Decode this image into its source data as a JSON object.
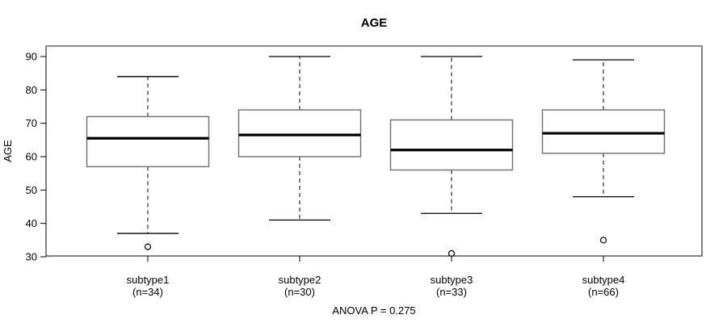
{
  "chart_data": {
    "type": "boxplot",
    "title": "AGE",
    "ylabel": "AGE",
    "footnote": "ANOVA P = 0.275",
    "ylim": [
      30,
      90
    ],
    "yticks": [
      "30",
      "40",
      "50",
      "60",
      "70",
      "80",
      "90"
    ],
    "grid": false,
    "legend": false,
    "groups": [
      {
        "label": "subtype1",
        "n_label": "(n=34)",
        "whisker_low": 37,
        "q1": 57,
        "median": 65.5,
        "q3": 72,
        "whisker_high": 84,
        "outliers": [
          33
        ]
      },
      {
        "label": "subtype2",
        "n_label": "(n=30)",
        "whisker_low": 41,
        "q1": 60,
        "median": 66.5,
        "q3": 74,
        "whisker_high": 90,
        "outliers": []
      },
      {
        "label": "subtype3",
        "n_label": "(n=33)",
        "whisker_low": 43,
        "q1": 56,
        "median": 62,
        "q3": 71,
        "whisker_high": 90,
        "outliers": [
          31
        ]
      },
      {
        "label": "subtype4",
        "n_label": "(n=66)",
        "whisker_low": 48,
        "q1": 61,
        "median": 67,
        "q3": 74,
        "whisker_high": 89,
        "outliers": [
          35
        ]
      }
    ],
    "colors": {
      "background": "#ffffff",
      "frame": "#000000",
      "frame_top": "#8a8a8a",
      "box_stroke": "#6e6e6e",
      "box_fill": "#ffffff",
      "median": "#000000",
      "whisker": "#000000",
      "outlier": "#000000",
      "text": "#000000"
    }
  }
}
